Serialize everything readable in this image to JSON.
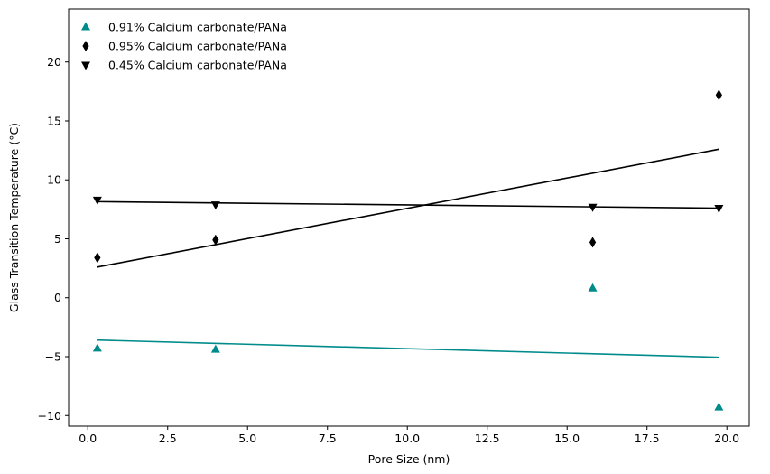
{
  "chart_data": {
    "type": "scatter",
    "xlabel": "Pore Size (nm)",
    "ylabel": "Glass Transition Temperature (°C)",
    "xlim": [
      -0.6,
      20.7
    ],
    "ylim": [
      -10.9,
      24.5
    ],
    "xticks": [
      0.0,
      2.5,
      5.0,
      7.5,
      10.0,
      12.5,
      15.0,
      17.5,
      20.0
    ],
    "xtick_labels": [
      "0.0",
      "2.5",
      "5.0",
      "7.5",
      "10.0",
      "12.5",
      "15.0",
      "17.5",
      "20.0"
    ],
    "yticks": [
      -10,
      -5,
      0,
      5,
      10,
      15,
      20
    ],
    "ytick_labels": [
      "−10",
      "−5",
      "0",
      "5",
      "10",
      "15",
      "20"
    ],
    "grid": false,
    "legend_position": "upper-left",
    "series": [
      {
        "name": "0.91% Calcium carbonate/PANa",
        "marker": "triangle-up",
        "color": "#008b8b",
        "x": [
          0.3,
          4.0,
          15.8,
          19.75
        ],
        "y": [
          -4.3,
          -4.4,
          0.8,
          -9.3
        ],
        "fit": {
          "x": [
            0.3,
            19.75
          ],
          "y": [
            -3.6,
            -5.05
          ],
          "color": "#008b8b"
        }
      },
      {
        "name": "0.95% Calcium carbonate/PANa",
        "marker": "thin-diamond",
        "color": "#000000",
        "x": [
          0.3,
          4.0,
          15.8,
          19.75
        ],
        "y": [
          3.4,
          4.9,
          4.7,
          17.2
        ],
        "fit": {
          "x": [
            0.3,
            19.75
          ],
          "y": [
            2.6,
            12.6
          ],
          "color": "#000000"
        }
      },
      {
        "name": "0.45% Calcium carbonate/PANa",
        "marker": "triangle-down",
        "color": "#000000",
        "x": [
          0.3,
          4.0,
          15.8,
          19.75
        ],
        "y": [
          8.3,
          7.9,
          7.7,
          7.6
        ],
        "fit": {
          "x": [
            0.3,
            19.75
          ],
          "y": [
            8.15,
            7.6
          ],
          "color": "#000000"
        }
      }
    ]
  }
}
